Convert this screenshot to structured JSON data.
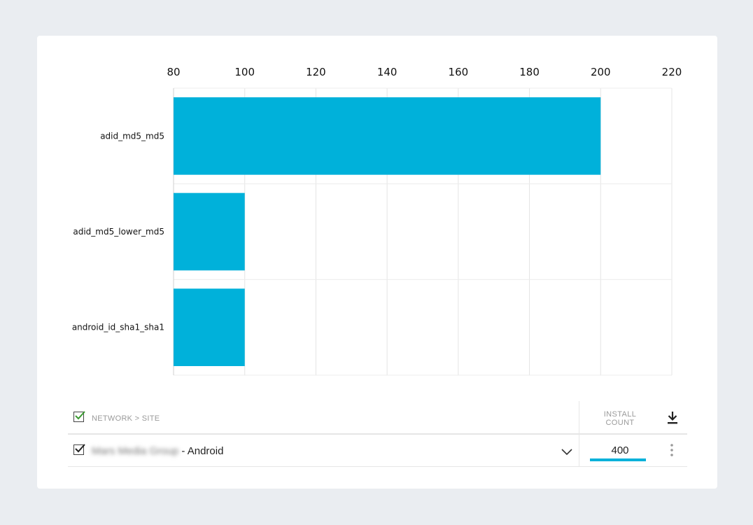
{
  "chart_data": {
    "type": "bar",
    "orientation": "horizontal",
    "categories": [
      "adid_md5_md5",
      "adid_md5_lower_md5",
      "android_id_sha1_sha1"
    ],
    "values": [
      200,
      100,
      100
    ],
    "xlim": [
      80,
      220
    ],
    "xticks": [
      80,
      100,
      120,
      140,
      160,
      180,
      200,
      220
    ],
    "x_axis_position": "top",
    "grid": true,
    "bar_color": "#00b1da",
    "title": "",
    "xlabel": "",
    "ylabel": ""
  },
  "table": {
    "header": {
      "network_label": "NETWORK > SITE",
      "install_label_line1": "INSTALL",
      "install_label_line2": "COUNT",
      "download_icon": "download-icon"
    },
    "row": {
      "network_name": "Mars Media Group",
      "platform": "Android",
      "install_count": "400",
      "expand_icon": "chevron-down-icon",
      "more_icon": "more-vertical-icon"
    }
  },
  "colors": {
    "accent": "#00b1da",
    "check_green": "#3a9a30",
    "background": "#eaedf1"
  }
}
